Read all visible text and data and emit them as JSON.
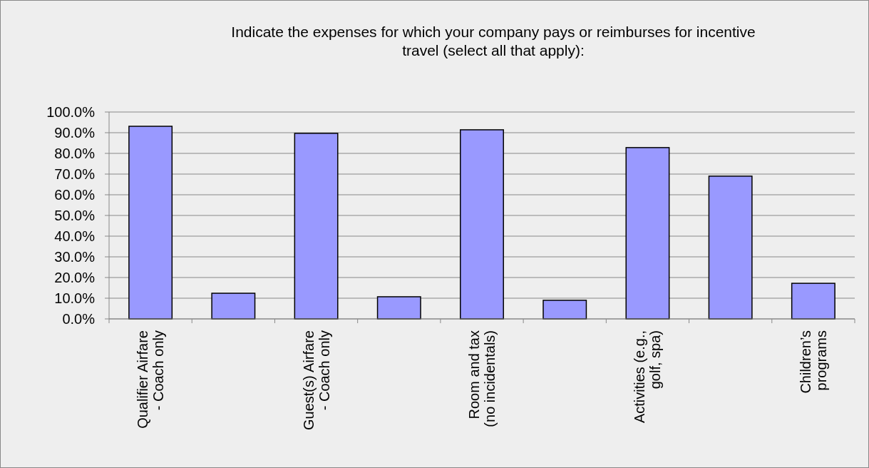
{
  "chart_data": {
    "type": "bar",
    "title": "Indicate the expenses for which your company pays or reimburses for incentive\ntravel (select all that apply):",
    "categories": [
      "Qualifier Airfare\n- Coach only",
      null,
      "Guest(s) Airfare\n- Coach only",
      null,
      "Room and tax\n(no incidentals)",
      null,
      "Activities (e.g.,\ngolf, spa)",
      null,
      "Children’s\nprograms"
    ],
    "values": [
      93.1,
      12.4,
      89.7,
      10.7,
      91.4,
      9.0,
      82.8,
      69.0,
      17.2
    ],
    "color": "#9999ff",
    "ylim": [
      0,
      100
    ],
    "yticks": [
      {
        "value": 0,
        "label": "0.0%"
      },
      {
        "value": 10,
        "label": "10.0%"
      },
      {
        "value": 20,
        "label": "20.0%"
      },
      {
        "value": 30,
        "label": "30.0%"
      },
      {
        "value": 40,
        "label": "40.0%"
      },
      {
        "value": 50,
        "label": "50.0%"
      },
      {
        "value": 60,
        "label": "60.0%"
      },
      {
        "value": 70,
        "label": "70.0%"
      },
      {
        "value": 80,
        "label": "80.0%"
      },
      {
        "value": 90,
        "label": "90.0%"
      },
      {
        "value": 100,
        "label": "100.0%"
      }
    ],
    "grid": "y"
  }
}
